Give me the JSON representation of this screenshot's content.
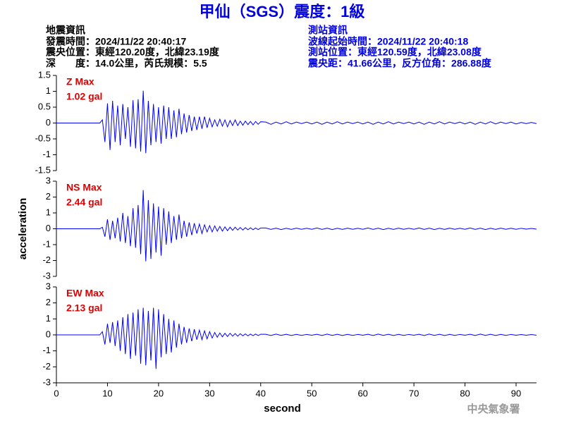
{
  "header": {
    "title": "甲仙（SGS）震度：1級",
    "left": [
      "地震資訊",
      "發震時間：2024/11/22 20:40:17",
      "震央位置：東經120.20度，北緯23.19度",
      "深　　度：14.0公里，芮氏規模：5.5"
    ],
    "right": [
      "測站資訊",
      "波線起始時間：2024/11/22 20:40:18",
      "測站位置：東經120.59度，北緯23.08度",
      "震央距：41.66公里，反方位角：286.88度"
    ]
  },
  "footer": "中央氣象署",
  "chart_data": [
    {
      "type": "line",
      "max_label": "Z Max",
      "max_value_label": "1.02 gal",
      "xlim": [
        0,
        94
      ],
      "ylim": [
        -1.5,
        1.5
      ],
      "yticks": [
        -1.5,
        -1,
        -0.5,
        0,
        0.5,
        1,
        1.5
      ],
      "x": [
        0,
        8.5,
        9,
        9.5,
        10,
        10.5,
        11,
        11.5,
        12,
        12.5,
        13,
        13.5,
        14,
        14.5,
        15,
        15.5,
        16,
        16.5,
        17,
        17.5,
        18,
        18.5,
        19,
        19.5,
        20,
        20.5,
        21,
        21.5,
        22,
        22.5,
        23,
        23.5,
        24,
        24.5,
        25,
        25.5,
        26,
        26.5,
        27,
        27.5,
        28,
        28.5,
        29,
        29.5,
        30,
        30.5,
        31,
        31.5,
        32,
        32.5,
        33,
        33.5,
        34,
        34.5,
        35,
        35.5,
        36,
        36.5,
        37,
        37.5,
        38,
        38.5,
        39,
        39.5,
        40,
        41,
        42,
        43,
        44,
        45,
        46,
        47,
        48,
        49,
        50,
        51,
        52,
        53,
        54,
        55,
        56,
        57,
        58,
        59,
        60,
        61,
        62,
        63,
        64,
        65,
        66,
        67,
        68,
        69,
        70,
        71,
        72,
        73,
        74,
        75,
        76,
        77,
        78,
        79,
        80,
        81,
        82,
        83,
        84,
        85,
        86,
        87,
        88,
        89,
        90,
        91,
        92,
        93,
        94
      ],
      "series": [
        {
          "color": "#0000ff",
          "values": [
            0,
            0,
            0.1,
            -0.6,
            0.62,
            -0.85,
            0.7,
            -0.6,
            0.55,
            -0.7,
            0.6,
            -0.5,
            0.5,
            -0.75,
            0.72,
            -0.8,
            0.75,
            -0.9,
            1.02,
            -0.95,
            0.7,
            -0.7,
            0.6,
            -0.6,
            0.5,
            -0.65,
            0.55,
            -0.5,
            0.5,
            -0.5,
            0.4,
            -0.45,
            0.45,
            -0.35,
            0.3,
            -0.3,
            0.25,
            -0.25,
            0.2,
            -0.22,
            0.2,
            -0.18,
            0.2,
            -0.15,
            0.15,
            -0.12,
            0.1,
            -0.1,
            0.12,
            -0.1,
            0.1,
            -0.12,
            0.08,
            -0.08,
            0.1,
            -0.08,
            0.06,
            -0.07,
            0.06,
            -0.05,
            0.05,
            -0.06,
            0.05,
            -0.04,
            0.04,
            0.03,
            -0.04,
            0.03,
            -0.03,
            0.04,
            -0.03,
            0.03,
            -0.02,
            0.03,
            -0.03,
            0.03,
            -0.04,
            0.03,
            -0.03,
            0.04,
            -0.03,
            0.03,
            -0.02,
            0.03,
            -0.03,
            0.03,
            -0.04,
            0.03,
            -0.03,
            0.04,
            -0.03,
            0.03,
            -0.02,
            0.03,
            -0.03,
            0.03,
            -0.04,
            0.03,
            -0.03,
            0.04,
            -0.03,
            0.03,
            -0.02,
            0.03,
            -0.03,
            0.03,
            -0.04,
            0.03,
            -0.03,
            0.04,
            -0.03,
            0.03,
            -0.02,
            0.03,
            -0.03,
            0.02,
            -0.02,
            0.02,
            -0.02
          ]
        }
      ]
    },
    {
      "type": "line",
      "max_label": "NS Max",
      "max_value_label": "2.44 gal",
      "ylabel": "acceleration",
      "xlim": [
        0,
        94
      ],
      "ylim": [
        -3,
        3
      ],
      "yticks": [
        -3,
        -2,
        -1,
        0,
        1,
        2,
        3
      ],
      "x": [
        0,
        8.5,
        9,
        9.5,
        10,
        10.5,
        11,
        11.5,
        12,
        12.5,
        13,
        13.5,
        14,
        14.5,
        15,
        15.5,
        16,
        16.5,
        17,
        17.5,
        18,
        18.5,
        19,
        19.5,
        20,
        20.5,
        21,
        21.5,
        22,
        22.5,
        23,
        23.5,
        24,
        24.5,
        25,
        25.5,
        26,
        26.5,
        27,
        27.5,
        28,
        28.5,
        29,
        29.5,
        30,
        30.5,
        31,
        31.5,
        32,
        32.5,
        33,
        33.5,
        34,
        34.5,
        35,
        35.5,
        36,
        36.5,
        37,
        37.5,
        38,
        38.5,
        39,
        39.5,
        40,
        41,
        42,
        43,
        44,
        45,
        46,
        47,
        48,
        49,
        50,
        51,
        52,
        53,
        54,
        55,
        56,
        57,
        58,
        59,
        60,
        61,
        62,
        63,
        64,
        65,
        66,
        67,
        68,
        69,
        70,
        71,
        72,
        73,
        74,
        75,
        76,
        77,
        78,
        79,
        80,
        81,
        82,
        83,
        84,
        85,
        86,
        87,
        88,
        89,
        90,
        91,
        92,
        93,
        94
      ],
      "series": [
        {
          "color": "#0000ff",
          "values": [
            0,
            0,
            0.1,
            -0.5,
            0.6,
            -0.7,
            0.5,
            -0.6,
            0.7,
            -0.8,
            1.0,
            -0.9,
            0.8,
            -1.1,
            1.3,
            -1.2,
            1.5,
            -1.6,
            2.44,
            -2.05,
            1.8,
            -1.9,
            1.6,
            -1.5,
            1.4,
            -1.7,
            1.3,
            -1.0,
            1.1,
            -0.9,
            0.8,
            -0.7,
            0.9,
            -0.6,
            0.5,
            -0.5,
            0.4,
            -0.4,
            0.35,
            -0.3,
            0.3,
            -0.3,
            0.25,
            -0.2,
            0.2,
            -0.2,
            0.18,
            -0.15,
            0.15,
            -0.15,
            0.12,
            -0.12,
            0.1,
            -0.1,
            0.1,
            -0.08,
            0.08,
            -0.08,
            0.07,
            -0.06,
            0.06,
            -0.06,
            0.05,
            -0.05,
            0.05,
            0.05,
            -0.04,
            0.04,
            -0.05,
            0.03,
            -0.04,
            0.04,
            -0.03,
            0.03,
            -0.03,
            0.05,
            -0.04,
            0.04,
            -0.05,
            0.03,
            -0.04,
            0.04,
            -0.03,
            0.03,
            -0.03,
            0.05,
            -0.04,
            0.04,
            -0.05,
            0.03,
            -0.04,
            0.04,
            -0.03,
            0.03,
            -0.03,
            0.05,
            -0.04,
            0.04,
            -0.05,
            0.03,
            -0.04,
            0.04,
            -0.03,
            0.03,
            -0.03,
            0.05,
            -0.04,
            0.04,
            -0.05,
            0.03,
            -0.04,
            0.04,
            -0.03,
            0.03,
            -0.03,
            0.03,
            -0.02,
            0.02,
            -0.02
          ]
        }
      ]
    },
    {
      "type": "line",
      "max_label": "EW Max",
      "max_value_label": "2.13 gal",
      "xlabel": "second",
      "xlim": [
        0,
        94
      ],
      "xticks": [
        0,
        10,
        20,
        30,
        40,
        50,
        60,
        70,
        80,
        90
      ],
      "ylim": [
        -3,
        3
      ],
      "yticks": [
        -3,
        -2,
        -1,
        0,
        1,
        2,
        3
      ],
      "x": [
        0,
        8.5,
        9,
        9.5,
        10,
        10.5,
        11,
        11.5,
        12,
        12.5,
        13,
        13.5,
        14,
        14.5,
        15,
        15.5,
        16,
        16.5,
        17,
        17.5,
        18,
        18.5,
        19,
        19.5,
        20,
        20.5,
        21,
        21.5,
        22,
        22.5,
        23,
        23.5,
        24,
        24.5,
        25,
        25.5,
        26,
        26.5,
        27,
        27.5,
        28,
        28.5,
        29,
        29.5,
        30,
        30.5,
        31,
        31.5,
        32,
        32.5,
        33,
        33.5,
        34,
        34.5,
        35,
        35.5,
        36,
        36.5,
        37,
        37.5,
        38,
        38.5,
        39,
        39.5,
        40,
        41,
        42,
        43,
        44,
        45,
        46,
        47,
        48,
        49,
        50,
        51,
        52,
        53,
        54,
        55,
        56,
        57,
        58,
        59,
        60,
        61,
        62,
        63,
        64,
        65,
        66,
        67,
        68,
        69,
        70,
        71,
        72,
        73,
        74,
        75,
        76,
        77,
        78,
        79,
        80,
        81,
        82,
        83,
        84,
        85,
        86,
        87,
        88,
        89,
        90,
        91,
        92,
        93,
        94
      ],
      "series": [
        {
          "color": "#0000ff",
          "values": [
            0,
            0,
            0.2,
            -0.6,
            0.7,
            -0.5,
            0.8,
            -0.7,
            0.9,
            -1.0,
            1.1,
            -1.2,
            1.3,
            -1.5,
            1.4,
            -1.3,
            1.6,
            -1.8,
            1.7,
            -1.9,
            1.5,
            -1.6,
            1.7,
            -2.13,
            1.6,
            -1.4,
            1.3,
            -1.2,
            1.0,
            -1.1,
            0.9,
            -0.8,
            0.7,
            -0.6,
            0.5,
            -0.5,
            0.4,
            -0.4,
            0.35,
            -0.3,
            0.3,
            -0.3,
            0.25,
            -0.25,
            0.2,
            -0.2,
            0.15,
            -0.15,
            0.12,
            -0.12,
            0.1,
            -0.1,
            0.1,
            -0.08,
            0.08,
            -0.08,
            0.07,
            -0.06,
            0.06,
            -0.06,
            0.05,
            -0.05,
            0.05,
            -0.04,
            0.04,
            0.04,
            -0.04,
            0.05,
            -0.03,
            0.04,
            -0.04,
            0.03,
            -0.03,
            0.03,
            -0.02,
            0.04,
            -0.04,
            0.05,
            -0.03,
            0.04,
            -0.04,
            0.03,
            -0.03,
            0.03,
            -0.02,
            0.04,
            -0.04,
            0.05,
            -0.03,
            0.04,
            -0.04,
            0.03,
            -0.03,
            0.03,
            -0.02,
            0.04,
            -0.04,
            0.05,
            -0.03,
            0.04,
            -0.04,
            0.03,
            -0.03,
            0.03,
            -0.02,
            0.04,
            -0.04,
            0.05,
            -0.03,
            0.04,
            -0.04,
            0.03,
            -0.03,
            0.03,
            -0.02,
            0.02,
            -0.02,
            0.02,
            -0.02
          ]
        }
      ]
    }
  ]
}
